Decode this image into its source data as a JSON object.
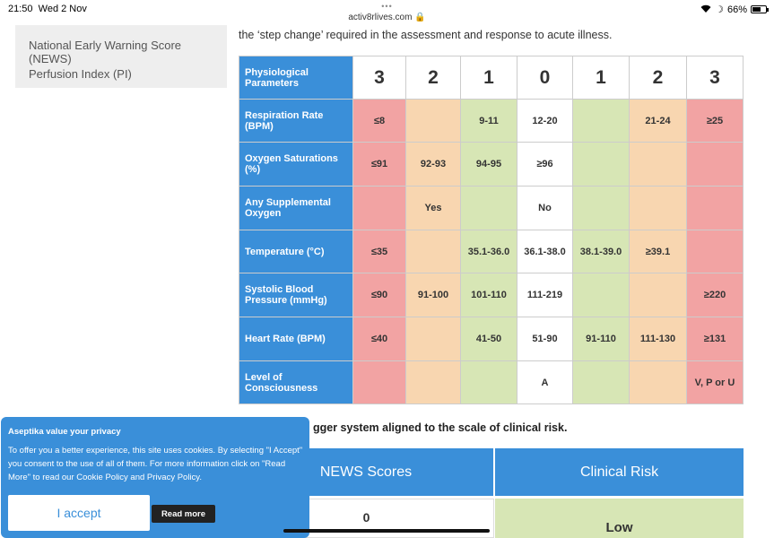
{
  "status_bar": {
    "time": "21:50",
    "date": "Wed 2 Nov",
    "url": "activ8rlives.com",
    "battery": "66%",
    "battery_level": 0.66
  },
  "sidebar": {
    "items": [
      {
        "label": "National Early Warning Score (NEWS)"
      },
      {
        "label": "Perfusion Index (PI)"
      }
    ]
  },
  "intro_text": "the ‘step change’ required in the assessment and response to acute illness.",
  "news_table": {
    "header": {
      "label": "Physiological Parameters",
      "scores": [
        "3",
        "2",
        "1",
        "0",
        "1",
        "2",
        "3"
      ]
    },
    "rows": [
      {
        "label": "Respiration Rate (BPM)",
        "cells": [
          "≤8",
          "",
          "9-11",
          "12-20",
          "",
          "21-24",
          "≥25"
        ]
      },
      {
        "label": "Oxygen Saturations (%)",
        "cells": [
          "≤91",
          "92-93",
          "94-95",
          "≥96",
          "",
          "",
          ""
        ]
      },
      {
        "label": "Any Supplemental Oxygen",
        "cells": [
          "",
          "Yes",
          "",
          "No",
          "",
          "",
          ""
        ]
      },
      {
        "label": "Temperature (°C)",
        "cells": [
          "≤35",
          "",
          "35.1-36.0",
          "36.1-38.0",
          "38.1-39.0",
          "≥39.1",
          ""
        ]
      },
      {
        "label": "Systolic Blood Pressure (mmHg)",
        "cells": [
          "≤90",
          "91-100",
          "101-110",
          "111-219",
          "",
          "",
          "≥220"
        ]
      },
      {
        "label": "Heart Rate (BPM)",
        "cells": [
          "≤40",
          "",
          "41-50",
          "51-90",
          "91-110",
          "111-130",
          "≥131"
        ]
      },
      {
        "label": "Level of Consciousness",
        "cells": [
          "",
          "",
          "",
          "A",
          "",
          "",
          "V, P or U"
        ]
      }
    ],
    "column_colors": [
      "#f2a3a3",
      "#f8d6b0",
      "#d7e6b5",
      "#ffffff",
      "#d7e6b5",
      "#f8d6b0",
      "#f2a3a3"
    ]
  },
  "subheading": "gger system aligned to the scale of clinical risk.",
  "risk_table": {
    "headers": [
      "NEWS Scores",
      "Clinical Risk"
    ],
    "first_row": [
      "0",
      "Low"
    ]
  },
  "cookie_banner": {
    "title": "Aseptika value your privacy",
    "text": "To offer you a better experience, this site uses cookies. By selecting \"I Accept\" you consent to the use of all of them. For more information click on \"Read More\" to read our Cookie Policy and Privacy Policy.",
    "accept_label": "I accept",
    "read_more_label": "Read more"
  },
  "colors": {
    "accent_blue": "#3a8fd9",
    "score_red": "#f2a3a3",
    "score_orange": "#f8d6b0",
    "score_green": "#d7e6b5"
  }
}
